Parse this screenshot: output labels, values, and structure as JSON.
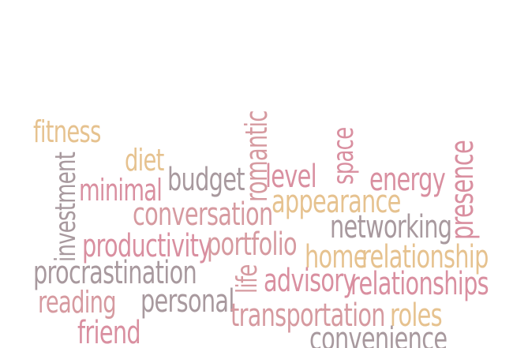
{
  "palette": {
    "tan": "#e6c28f",
    "rose": "#d69aa0",
    "pink": "#d98fa0",
    "grey": "#a8999e"
  },
  "words": [
    {
      "text": "fitness",
      "color": "tan"
    },
    {
      "text": "diet",
      "color": "tan"
    },
    {
      "text": "investment",
      "color": "grey"
    },
    {
      "text": "minimal",
      "color": "pink"
    },
    {
      "text": "budget",
      "color": "grey"
    },
    {
      "text": "romantic",
      "color": "rose"
    },
    {
      "text": "level",
      "color": "pink"
    },
    {
      "text": "space",
      "color": "pink"
    },
    {
      "text": "energy",
      "color": "pink"
    },
    {
      "text": "presence",
      "color": "pink"
    },
    {
      "text": "conversation",
      "color": "rose"
    },
    {
      "text": "appearance",
      "color": "tan"
    },
    {
      "text": "networking",
      "color": "grey"
    },
    {
      "text": "productivity",
      "color": "pink"
    },
    {
      "text": "portfolio",
      "color": "rose"
    },
    {
      "text": "home",
      "color": "tan"
    },
    {
      "text": "relationship",
      "color": "tan"
    },
    {
      "text": "life",
      "color": "rose"
    },
    {
      "text": "advisory",
      "color": "pink"
    },
    {
      "text": "relationships",
      "color": "pink"
    },
    {
      "text": "procrastination",
      "color": "grey"
    },
    {
      "text": "reading",
      "color": "rose"
    },
    {
      "text": "personal",
      "color": "grey"
    },
    {
      "text": "transportation",
      "color": "rose"
    },
    {
      "text": "roles",
      "color": "tan"
    },
    {
      "text": "friend",
      "color": "pink"
    },
    {
      "text": "convenience",
      "color": "grey"
    }
  ]
}
